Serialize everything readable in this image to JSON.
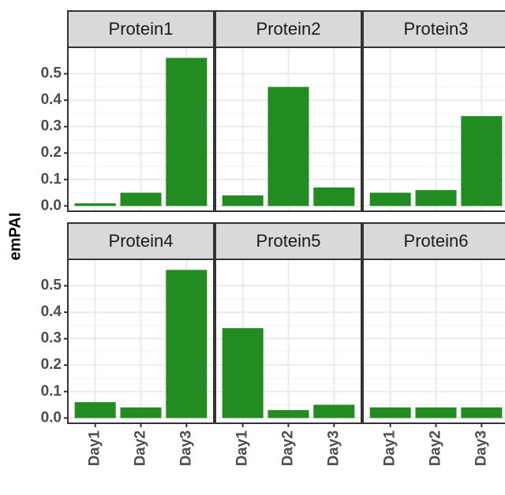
{
  "chart_data": {
    "type": "bar",
    "facet": "wrap",
    "ylabel": "emPAI",
    "xlabel": "",
    "ylim": [
      -0.02,
      0.6
    ],
    "yticks": [
      0.0,
      0.1,
      0.2,
      0.3,
      0.4,
      0.5
    ],
    "ytick_labels": [
      "0.0",
      "0.1",
      "0.2",
      "0.3",
      "0.4",
      "0.5"
    ],
    "categories": [
      "Day1",
      "Day2",
      "Day3"
    ],
    "grid": true,
    "bar_color": "#228B22",
    "strip_color": "#D9D9D9",
    "panels": [
      {
        "title": "Protein1",
        "values": [
          0.01,
          0.05,
          0.56
        ]
      },
      {
        "title": "Protein2",
        "values": [
          0.04,
          0.45,
          0.07
        ]
      },
      {
        "title": "Protein3",
        "values": [
          0.05,
          0.06,
          0.34
        ]
      },
      {
        "title": "Protein4",
        "values": [
          0.06,
          0.04,
          0.56
        ]
      },
      {
        "title": "Protein5",
        "values": [
          0.34,
          0.03,
          0.05
        ]
      },
      {
        "title": "Protein6",
        "values": [
          0.04,
          0.04,
          0.04
        ]
      }
    ]
  }
}
